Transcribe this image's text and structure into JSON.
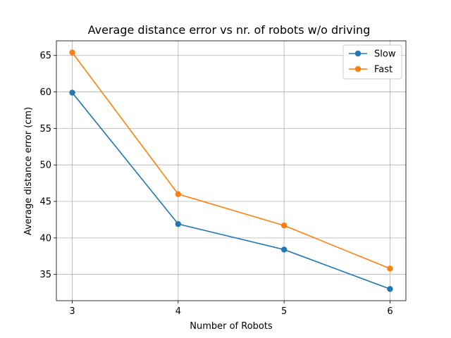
{
  "chart_data": {
    "type": "line",
    "title": "Average distance error vs nr. of robots w/o driving",
    "xlabel": "Number of Robots",
    "ylabel": "Average distance error (cm)",
    "x": [
      3,
      4,
      5,
      6
    ],
    "x_ticks": [
      "3",
      "4",
      "5",
      "6"
    ],
    "y_ticks": [
      "35",
      "40",
      "45",
      "50",
      "55",
      "60",
      "65"
    ],
    "xlim": [
      2.85,
      6.15
    ],
    "ylim": [
      31.4,
      67.0
    ],
    "grid": true,
    "legend_position": "top-right",
    "series": [
      {
        "name": "Slow",
        "color": "#1f77b4",
        "values": [
          59.9,
          41.9,
          38.4,
          33.0
        ]
      },
      {
        "name": "Fast",
        "color": "#ff7f0e",
        "values": [
          65.4,
          46.0,
          41.7,
          35.8
        ]
      }
    ]
  }
}
